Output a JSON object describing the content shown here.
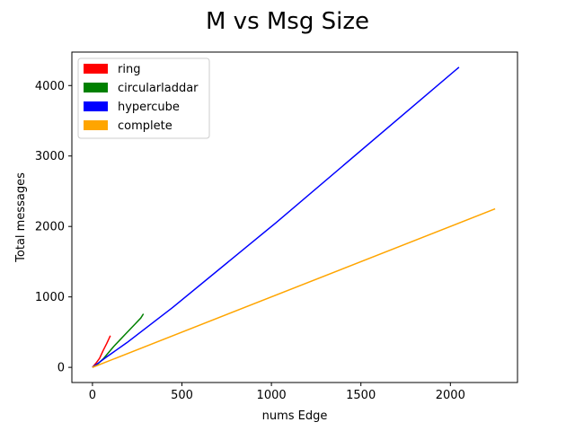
{
  "chart_data": {
    "type": "line",
    "title": "M vs Msg Size",
    "xlabel": "nums Edge",
    "ylabel": "Total messages",
    "xlim": [
      -115,
      2375
    ],
    "ylim": [
      -215,
      4475
    ],
    "xticks": [
      0,
      500,
      1000,
      1500,
      2000
    ],
    "yticks": [
      0,
      1000,
      2000,
      3000,
      4000
    ],
    "grid": false,
    "legend_position": "upper-left",
    "series": [
      {
        "name": "ring",
        "color": "#ff0000",
        "x": [
          0,
          20,
          40,
          60,
          80,
          100
        ],
        "y": [
          0,
          60,
          130,
          240,
          340,
          450
        ]
      },
      {
        "name": "circularladdar",
        "color": "#008000",
        "x": [
          0,
          30,
          60,
          90,
          120,
          150,
          180,
          210,
          240,
          270,
          285
        ],
        "y": [
          0,
          50,
          120,
          210,
          300,
          380,
          460,
          540,
          620,
          700,
          760
        ]
      },
      {
        "name": "hypercube",
        "color": "#0000ff",
        "x": [
          0,
          32,
          80,
          192,
          448,
          1024,
          2048
        ],
        "y": [
          0,
          60,
          150,
          350,
          850,
          2050,
          4260
        ]
      },
      {
        "name": "complete",
        "color": "#ffa500",
        "x": [
          0,
          2250
        ],
        "y": [
          0,
          2250
        ]
      }
    ]
  }
}
